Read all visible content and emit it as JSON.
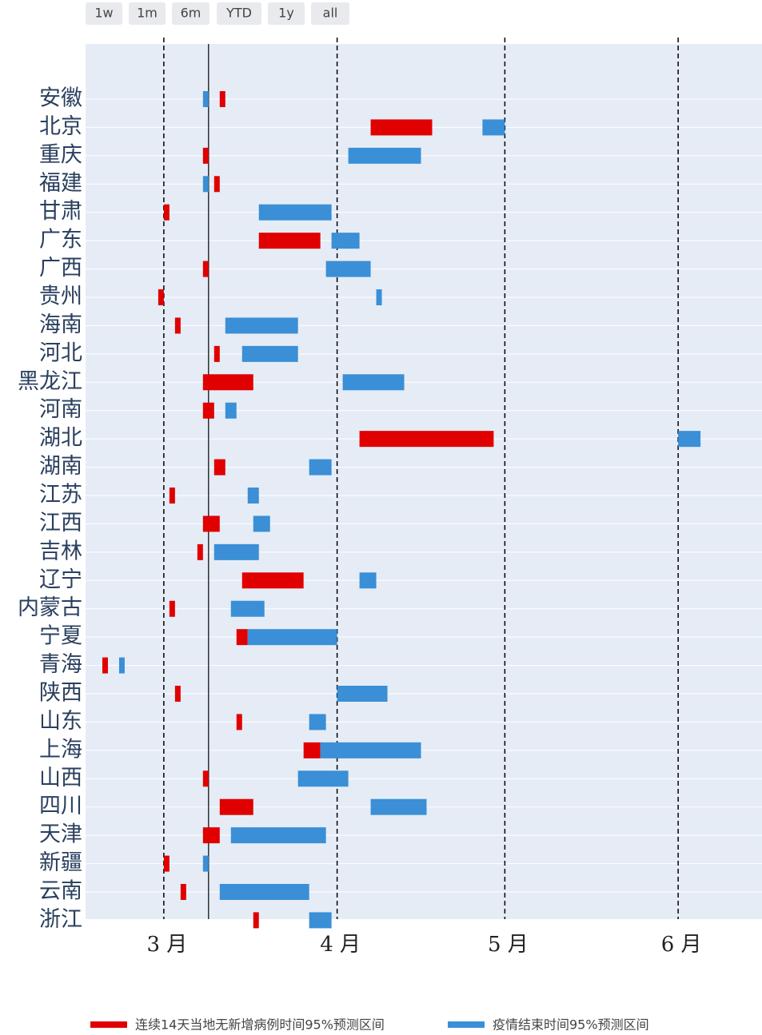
{
  "chart_data": {
    "type": "range_bar",
    "range_buttons": [
      "1w",
      "1m",
      "6m",
      "YTD",
      "1y",
      "all"
    ],
    "categories": [
      "安徽",
      "北京",
      "重庆",
      "福建",
      "甘肃",
      "广东",
      "广西",
      "贵州",
      "海南",
      "河北",
      "黑龙江",
      "河南",
      "湖北",
      "湖南",
      "江苏",
      "江西",
      "吉林",
      "辽宁",
      "内蒙古",
      "宁夏",
      "青海",
      "陕西",
      "山东",
      "上海",
      "山西",
      "四川",
      "天津",
      "新疆",
      "云南",
      "浙江"
    ],
    "series": [
      {
        "name": "连续14天当地无新增病例时间95%预测区间",
        "color": "#e00000",
        "values": [
          [
            "03-11",
            "03-12"
          ],
          [
            "04-07",
            "04-18"
          ],
          [
            "03-08",
            "03-09"
          ],
          [
            "03-10",
            "03-11"
          ],
          [
            "03-01",
            "03-02"
          ],
          [
            "03-18",
            "03-29"
          ],
          [
            "03-08",
            "03-09"
          ],
          [
            "02-28",
            "03-01"
          ],
          [
            "03-03",
            "03-04"
          ],
          [
            "03-10",
            "03-11"
          ],
          [
            "03-08",
            "03-17"
          ],
          [
            "03-08",
            "03-10"
          ],
          [
            "04-05",
            "04-29"
          ],
          [
            "03-10",
            "03-12"
          ],
          [
            "03-02",
            "03-03"
          ],
          [
            "03-08",
            "03-11"
          ],
          [
            "03-07",
            "03-08"
          ],
          [
            "03-15",
            "03-26"
          ],
          [
            "03-02",
            "03-03"
          ],
          [
            "03-14",
            "03-16"
          ],
          [
            "02-18",
            "02-19"
          ],
          [
            "03-03",
            "03-04"
          ],
          [
            "03-14",
            "03-15"
          ],
          [
            "03-26",
            "03-29"
          ],
          [
            "03-08",
            "03-09"
          ],
          [
            "03-11",
            "03-17"
          ],
          [
            "03-08",
            "03-11"
          ],
          [
            "03-01",
            "03-02"
          ],
          [
            "03-04",
            "03-05"
          ],
          [
            "03-17",
            "03-18"
          ]
        ]
      },
      {
        "name": "疫情结束时间95%预测区间",
        "color": "#3a8fd6",
        "values": [
          [
            "03-08",
            "03-09"
          ],
          [
            "04-27",
            "05-01"
          ],
          [
            "04-03",
            "04-16"
          ],
          [
            "03-08",
            "03-09"
          ],
          [
            "03-18",
            "03-31"
          ],
          [
            "03-31",
            "04-05"
          ],
          [
            "03-30",
            "04-07"
          ],
          [
            "04-08",
            "04-09"
          ],
          [
            "03-12",
            "03-25"
          ],
          [
            "03-15",
            "03-25"
          ],
          [
            "04-02",
            "04-13"
          ],
          [
            "03-12",
            "03-14"
          ],
          [
            "06-01",
            "06-05"
          ],
          [
            "03-27",
            "03-31"
          ],
          [
            "03-16",
            "03-18"
          ],
          [
            "03-17",
            "03-20"
          ],
          [
            "03-10",
            "03-18"
          ],
          [
            "04-05",
            "04-08"
          ],
          [
            "03-13",
            "03-19"
          ],
          [
            "03-16",
            "04-01"
          ],
          [
            "02-21",
            "02-22"
          ],
          [
            "04-01",
            "04-10"
          ],
          [
            "03-27",
            "03-30"
          ],
          [
            "03-29",
            "04-16"
          ],
          [
            "03-25",
            "04-03"
          ],
          [
            "04-07",
            "04-17"
          ],
          [
            "03-13",
            "03-30"
          ],
          [
            "03-08",
            "03-09"
          ],
          [
            "03-11",
            "03-27"
          ],
          [
            "03-27",
            "03-31"
          ]
        ]
      }
    ],
    "xlim": [
      "02-15",
      "06-16"
    ],
    "xticks": [
      {
        "value": "03-01",
        "label": "3 月"
      },
      {
        "value": "04-01",
        "label": "4 月"
      },
      {
        "value": "05-01",
        "label": "5 月"
      },
      {
        "value": "06-01",
        "label": "6 月"
      }
    ],
    "vline": "03-09",
    "grid": true,
    "legend": "bottom"
  }
}
